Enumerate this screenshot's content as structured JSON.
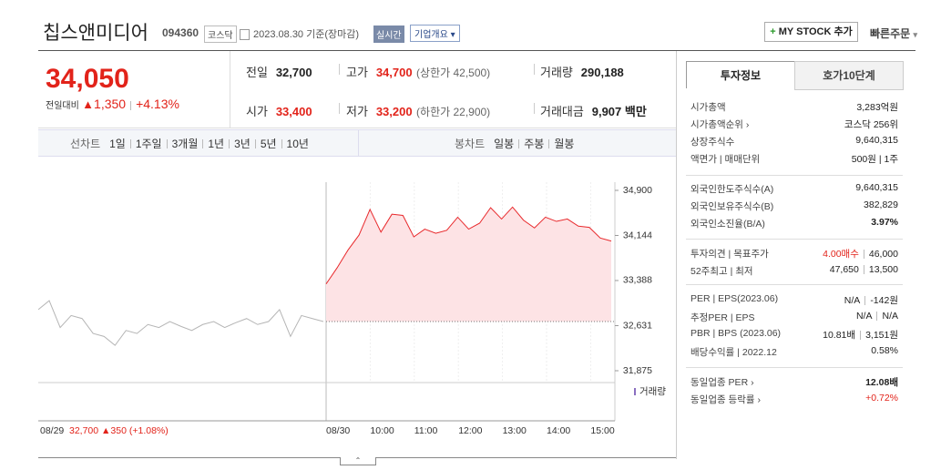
{
  "header": {
    "name": "칩스앤미디어",
    "code": "094360",
    "market": "코스닥",
    "date": "2023.08.30 기준(장마감)",
    "realtime": "실시간",
    "company": "기업개요",
    "mystock": "MY STOCK 추가",
    "order": "빠른주문"
  },
  "price": {
    "current": "34,050",
    "change_label": "전일대비",
    "change": "1,350",
    "rate": "+4.13%"
  },
  "stats": [
    [
      {
        "label": "전일",
        "value": "32,700"
      },
      {
        "label": "고가",
        "value": "34,700",
        "note": "(상한가 42,500)"
      },
      {
        "label": "거래량",
        "value": "290,188"
      }
    ],
    [
      {
        "label": "시가",
        "value": "33,400"
      },
      {
        "label": "저가",
        "value": "33,200",
        "note": "(하한가 22,900)"
      },
      {
        "label": "거래대금",
        "value": "9,907 백만"
      }
    ]
  ],
  "chart_tabs": {
    "line_label": "선차트",
    "line": [
      "1일",
      "1주일",
      "3개월",
      "1년",
      "3년",
      "5년",
      "10년"
    ],
    "candle_label": "봉차트",
    "candle": [
      "일봉",
      "주봉",
      "월봉"
    ]
  },
  "chart_data": {
    "type": "line",
    "ylim": [
      31875,
      34900
    ],
    "yticks": [
      {
        "value": 34900,
        "label": "34,900"
      },
      {
        "value": 34144,
        "label": "34,144"
      },
      {
        "value": 33388,
        "label": "33,388"
      },
      {
        "value": 32631,
        "label": "32,631"
      },
      {
        "value": 31875,
        "label": "31,875"
      }
    ],
    "baseline": 32700,
    "volume_label": "거래량",
    "prev_date": "08/29",
    "prev_summary": "32,700 ▲350 (+1.08%)",
    "today_date": "08/30",
    "hours": [
      "10:00",
      "11:00",
      "12:00",
      "13:00",
      "14:00",
      "15:00"
    ],
    "series": [
      {
        "color": "#b5b5b5",
        "values": [
          32900,
          33050,
          32600,
          32800,
          32750,
          32500,
          32450,
          32300,
          32550,
          32500,
          32650,
          32600,
          32700,
          32620,
          32550,
          32650,
          32700,
          32600,
          32680,
          32750,
          32650,
          32700,
          32900,
          32450,
          32800,
          32750,
          32700
        ]
      },
      {
        "color": "#e8282b",
        "fill": "#fde3e5",
        "values": [
          33330,
          33600,
          33900,
          34150,
          34580,
          34200,
          34500,
          34480,
          34120,
          34250,
          34180,
          34230,
          34450,
          34250,
          34350,
          34610,
          34420,
          34620,
          34400,
          34270,
          34450,
          34380,
          34420,
          34300,
          34280,
          34100,
          34050
        ]
      }
    ]
  },
  "info": {
    "tabs": [
      "투자정보",
      "호가10단계"
    ],
    "rows": [
      {
        "label": "시가총액",
        "value": "3,283억원"
      },
      {
        "label": "시가총액순위 ›",
        "value": "코스닥 256위"
      },
      {
        "label": "상장주식수",
        "value": "9,640,315"
      },
      {
        "label": "액면가 | 매매단위",
        "value": "500원 | 1주"
      },
      {
        "label": "외국인한도주식수(A)",
        "value": "9,640,315"
      },
      {
        "label": "외국인보유주식수(B)",
        "value": "382,829"
      },
      {
        "label": "외국인소진율(B/A)",
        "value": "3.97%"
      },
      {
        "label": "투자의견 | 목표주가",
        "value": "4.00매수",
        "value2": "46,000"
      },
      {
        "label": "52주최고 | 최저",
        "value": "47,650",
        "value2": "13,500"
      },
      {
        "label": "PER | EPS(2023.06)",
        "value": "N/A",
        "value2": "-142원"
      },
      {
        "label": "추정PER | EPS",
        "value": "N/A",
        "value2": "N/A"
      },
      {
        "label": "PBR | BPS (2023.06)",
        "value": "10.81배",
        "value2": "3,151원"
      },
      {
        "label": "배당수익률 | 2022.12",
        "value": "0.58%"
      },
      {
        "label": "동일업종 PER ›",
        "value": "12.08배"
      },
      {
        "label": "동일업종 등락률 ›",
        "value": "+0.72%"
      }
    ]
  }
}
